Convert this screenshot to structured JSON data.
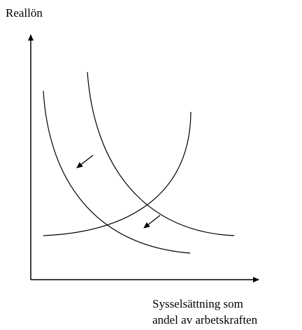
{
  "y_axis_label": "Reallön",
  "x_axis_label": [
    "Sysselsättning som",
    "andel av arbetskraften"
  ]
}
